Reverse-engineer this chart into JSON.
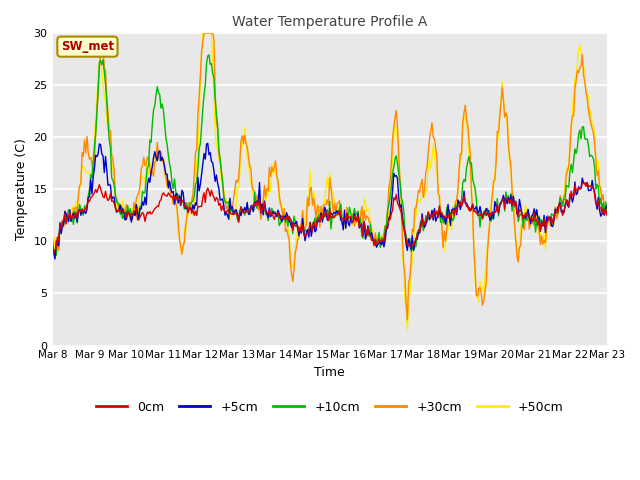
{
  "title": "Water Temperature Profile A",
  "xlabel": "Time",
  "ylabel": "Temperature (C)",
  "ylim": [
    0,
    30
  ],
  "xtick_labels": [
    "Mar 8",
    "Mar 9",
    "Mar 10",
    "Mar 11",
    "Mar 12",
    "Mar 13",
    "Mar 14",
    "Mar 15",
    "Mar 16",
    "Mar 17",
    "Mar 18",
    "Mar 19",
    "Mar 20",
    "Mar 21",
    "Mar 22",
    "Mar 23"
  ],
  "series_labels": [
    "0cm",
    "+5cm",
    "+10cm",
    "+30cm",
    "+50cm"
  ],
  "series_colors": [
    "#dd0000",
    "#0000cc",
    "#00bb00",
    "#ff8800",
    "#ffee00"
  ],
  "series_zorders": [
    5,
    4,
    3,
    2,
    1
  ],
  "series_linewidths": [
    1.0,
    1.0,
    1.0,
    1.0,
    1.0
  ],
  "legend_labels": [
    "0cm",
    "+5cm",
    "+10cm",
    "+30cm",
    "+50cm"
  ],
  "annotation_text": "SW_met",
  "annotation_fg": "#aa0000",
  "annotation_border": "#aa8800",
  "annotation_bg": "#ffffcc",
  "bg_color": "#e8e8e8",
  "fig_bg_color": "#ffffff",
  "yticks": [
    0,
    5,
    10,
    15,
    20,
    25,
    30
  ],
  "grid_color": "#ffffff",
  "n_points": 480
}
